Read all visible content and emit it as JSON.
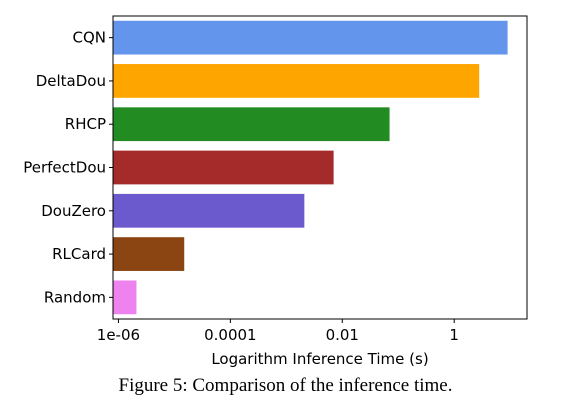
{
  "chart_data": {
    "type": "bar",
    "orientation": "horizontal",
    "categories": [
      "CQN",
      "DeltaDou",
      "RHCP",
      "PerfectDou",
      "DouZero",
      "RLCard",
      "Random"
    ],
    "values": [
      9.0,
      2.8,
      0.07,
      0.007,
      0.0021,
      1.5e-05,
      2.1e-06
    ],
    "colors": [
      "#6495ed",
      "#ffa500",
      "#228b22",
      "#a52a2a",
      "#6a5acd",
      "#8b4513",
      "#ee82ee"
    ],
    "xscale": "log",
    "xlim": [
      8e-07,
      20
    ],
    "xticks": [
      1e-06,
      0.0001,
      0.01,
      1
    ],
    "xtick_labels": [
      "1e-06",
      "0.0001",
      "0.01",
      "1"
    ],
    "xlabel": "Logarithm Inference Time (s)",
    "ylabel": "",
    "title": "",
    "grid": false
  },
  "caption": "Figure 5: Comparison of the inference time."
}
